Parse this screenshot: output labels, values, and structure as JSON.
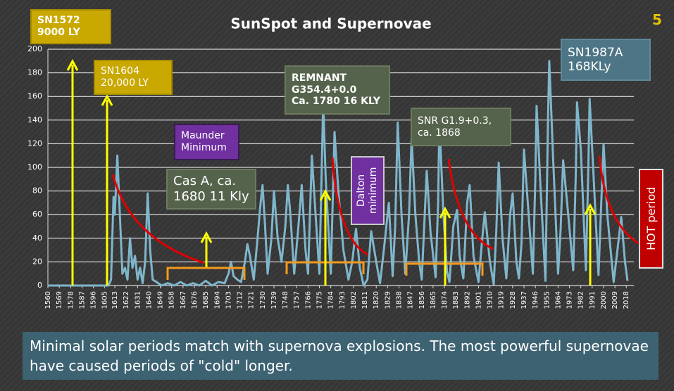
{
  "slide_number": 5,
  "caption": "Minimal solar periods match with supernova explosions. The most powerful supernovae have caused periods of \"cold\" longer.",
  "chart_data": {
    "type": "line",
    "title": "SunSpot and Supernovae",
    "color": "#7fb6cc",
    "grid": true,
    "xlim": [
      1560,
      2024
    ],
    "ylim": [
      0,
      200
    ],
    "yticks": [
      0,
      20,
      40,
      60,
      80,
      100,
      120,
      140,
      160,
      180,
      200
    ],
    "xticks": [
      1560,
      1569,
      1578,
      1587,
      1596,
      1605,
      1613,
      1622,
      1631,
      1640,
      1649,
      1658,
      1667,
      1676,
      1685,
      1694,
      1703,
      1712,
      1721,
      1730,
      1739,
      1748,
      1757,
      1766,
      1775,
      1784,
      1793,
      1802,
      1811,
      1820,
      1829,
      1838,
      1847,
      1856,
      1865,
      1874,
      1883,
      1892,
      1901,
      1910,
      1919,
      1928,
      1937,
      1946,
      1955,
      1964,
      1973,
      1982,
      1991,
      2000,
      2009,
      2018
    ],
    "x": [
      1560,
      1570,
      1580,
      1590,
      1600,
      1608,
      1610,
      1612,
      1613,
      1615,
      1617,
      1619,
      1621,
      1623,
      1625,
      1627,
      1629,
      1631,
      1633,
      1635,
      1637,
      1639,
      1641,
      1643,
      1646,
      1650,
      1655,
      1660,
      1665,
      1670,
      1675,
      1680,
      1685,
      1690,
      1695,
      1700,
      1703,
      1705,
      1707,
      1710,
      1713,
      1716,
      1718,
      1720,
      1723,
      1726,
      1728,
      1730,
      1732,
      1734,
      1737,
      1739,
      1742,
      1745,
      1748,
      1750,
      1752,
      1755,
      1758,
      1761,
      1764,
      1766,
      1769,
      1772,
      1775,
      1778,
      1780,
      1784,
      1787,
      1790,
      1794,
      1798,
      1801,
      1804,
      1807,
      1810,
      1813,
      1816,
      1820,
      1823,
      1826,
      1830,
      1833,
      1835,
      1837,
      1840,
      1843,
      1846,
      1848,
      1851,
      1854,
      1856,
      1858,
      1860,
      1863,
      1867,
      1869,
      1870,
      1873,
      1876,
      1878,
      1881,
      1884,
      1886,
      1889,
      1892,
      1894,
      1897,
      1901,
      1904,
      1906,
      1910,
      1913,
      1915,
      1917,
      1920,
      1923,
      1926,
      1928,
      1931,
      1933,
      1935,
      1937,
      1940,
      1944,
      1946,
      1947,
      1950,
      1954,
      1956,
      1957,
      1960,
      1964,
      1966,
      1968,
      1972,
      1976,
      1978,
      1979,
      1982,
      1986,
      1988,
      1989,
      1992,
      1996,
      1998,
      2000,
      2003,
      2008,
      2011,
      2014,
      2017,
      2019
    ],
    "values": [
      0,
      0,
      0,
      0,
      0,
      0,
      5,
      75,
      60,
      110,
      60,
      10,
      15,
      5,
      40,
      15,
      25,
      5,
      15,
      2,
      20,
      78,
      30,
      5,
      3,
      0,
      2,
      0,
      3,
      0,
      2,
      0,
      4,
      0,
      3,
      2,
      10,
      20,
      8,
      5,
      3,
      20,
      35,
      25,
      5,
      40,
      65,
      85,
      50,
      10,
      40,
      80,
      40,
      20,
      50,
      85,
      60,
      10,
      45,
      85,
      30,
      10,
      110,
      60,
      10,
      155,
      90,
      10,
      130,
      80,
      30,
      5,
      20,
      48,
      15,
      0,
      5,
      46,
      20,
      2,
      30,
      70,
      8,
      50,
      138,
      60,
      10,
      60,
      125,
      60,
      20,
      5,
      50,
      97,
      45,
      7,
      70,
      140,
      65,
      12,
      3,
      50,
      64,
      25,
      6,
      70,
      85,
      25,
      3,
      40,
      62,
      20,
      1,
      45,
      104,
      40,
      6,
      60,
      78,
      20,
      6,
      35,
      115,
      70,
      10,
      90,
      152,
      85,
      4,
      140,
      190,
      110,
      10,
      47,
      106,
      60,
      13,
      93,
      155,
      115,
      13,
      100,
      158,
      95,
      9,
      65,
      120,
      60,
      3,
      30,
      58,
      20,
      4
    ],
    "annotations": [
      {
        "lines": [
          "SN1572",
          "9000 LY"
        ]
      },
      {
        "lines": [
          "SN1604",
          "20,000 LY"
        ]
      },
      {
        "lines": [
          "Maunder",
          "Minimum"
        ]
      },
      {
        "lines": [
          "Cas A, ca.",
          "1680 11 Kly"
        ]
      },
      {
        "lines": [
          "REMNANT",
          "G354.4+0.0",
          "Ca. 1780  16 KLY"
        ]
      },
      {
        "lines": [
          "Dalton",
          "minimum"
        ]
      },
      {
        "lines": [
          "SNR G1.9+0.3,",
          "ca. 1868"
        ]
      },
      {
        "lines": [
          "SN1987A",
          "168KLy"
        ]
      },
      {
        "lines": [
          "HOT period"
        ]
      }
    ]
  }
}
